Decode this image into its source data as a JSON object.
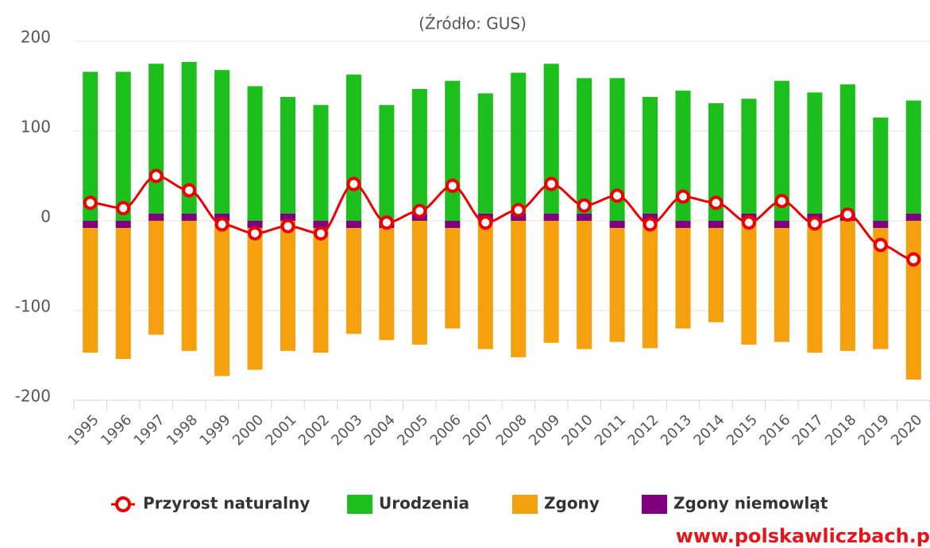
{
  "chart_data": {
    "type": "bar",
    "title": "(Źródło: GUS)",
    "watermark": "www.polskawliczbach.p",
    "categories": [
      "1995",
      "1996",
      "1997",
      "1998",
      "1999",
      "2000",
      "2001",
      "2002",
      "2003",
      "2004",
      "2005",
      "2006",
      "2007",
      "2008",
      "2009",
      "2010",
      "2011",
      "2012",
      "2013",
      "2014",
      "2015",
      "2016",
      "2017",
      "2018",
      "2019",
      "2020"
    ],
    "series": [
      {
        "name": "Przyrost naturalny",
        "type": "line",
        "color": "#ee0000",
        "values": [
          20,
          14,
          50,
          34,
          -4,
          -14,
          -6,
          -14,
          41,
          -2,
          11,
          39,
          -2,
          12,
          41,
          17,
          28,
          -4,
          27,
          20,
          -2,
          22,
          -3,
          7,
          -27,
          -43
        ]
      },
      {
        "name": "Urodzenia",
        "type": "bar",
        "color": "#1dbf1d",
        "values": [
          166,
          166,
          167,
          169,
          160,
          150,
          130,
          129,
          163,
          129,
          139,
          156,
          134,
          157,
          167,
          151,
          159,
          130,
          145,
          131,
          128,
          156,
          135,
          144,
          115,
          126
        ]
      },
      {
        "name": "Zgony",
        "type": "bar",
        "color": "#f5a00f",
        "values": [
          -139,
          -146,
          -127,
          -145,
          -173,
          -158,
          -145,
          -139,
          -118,
          -125,
          -138,
          -112,
          -143,
          -152,
          -136,
          -143,
          -127,
          -142,
          -112,
          -105,
          -138,
          -127,
          -147,
          -145,
          -135,
          -177
        ]
      },
      {
        "name": "Zgony niemowląt",
        "type": "bar",
        "color": "#800080",
        "values": [
          -8,
          -8,
          8,
          8,
          8,
          -8,
          8,
          -8,
          -8,
          -8,
          8,
          -8,
          8,
          8,
          8,
          8,
          -8,
          8,
          -8,
          -8,
          8,
          -8,
          8,
          8,
          -8,
          8
        ]
      }
    ],
    "ylim": [
      -200,
      200
    ],
    "yticks": [
      -200,
      -100,
      0,
      100,
      200
    ],
    "grid": true,
    "stacked": true
  }
}
